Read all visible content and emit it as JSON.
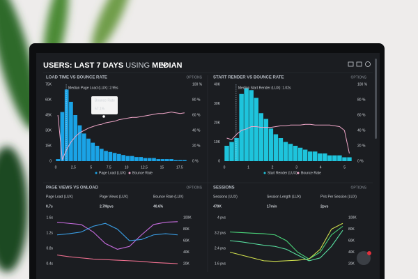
{
  "header": {
    "parts": [
      "USERS:",
      "LAST 7 DAYS",
      "USING",
      "MEDIAN"
    ]
  },
  "panels": [
    {
      "title": "LOAD TIME VS BOUNCE RATE",
      "options": "OPTIONS",
      "left_ticks": [
        {
          "value": 75,
          "label": "75K"
        },
        {
          "value": 60,
          "label": "60K"
        },
        {
          "value": 45,
          "label": "45K"
        },
        {
          "value": 30,
          "label": "30K"
        },
        {
          "value": 15,
          "label": "15K"
        },
        0
      ],
      "right_ticks": [
        {
          "value": 100,
          "label": "100 %"
        },
        {
          "value": 80,
          "label": "80 %"
        },
        {
          "value": 60,
          "label": "60 %"
        },
        {
          "value": 40,
          "label": "40 %"
        },
        {
          "value": 20,
          "label": "20 %"
        },
        {
          "value": 0,
          "label": "0 %"
        }
      ],
      "x_ticks": [
        0,
        2.5,
        5,
        7.5,
        10,
        12.5,
        15,
        17.5
      ],
      "xlim": [
        0,
        18.5
      ],
      "bars": [
        2,
        48,
        70,
        58,
        45,
        35,
        27,
        22,
        18,
        15,
        12,
        10,
        9,
        8,
        7,
        6,
        5,
        5,
        4,
        4,
        3,
        3,
        3,
        2,
        2,
        2,
        2,
        1,
        1,
        1
      ],
      "line": [
        60,
        2,
        15,
        25,
        32,
        37,
        40,
        43,
        45,
        47,
        48,
        50,
        51,
        52,
        54,
        55,
        56,
        57,
        57,
        58,
        59,
        60,
        61,
        62,
        62,
        63,
        64,
        63,
        62,
        63
      ],
      "bar_color": "#1aa3e6",
      "line_color": "#f1a7c9",
      "annotation": "Median Page Load (LUX): 2.95s",
      "tooltip": {
        "label": "Bounce Rate",
        "value": "57.1%"
      },
      "legend": [
        {
          "name": "Page Load (LUX)",
          "color": "#1aa3e6"
        },
        {
          "name": "Bounce Rate",
          "color": "#f1a7c9"
        }
      ]
    },
    {
      "title": "START RENDER VS BOUNCE RATE",
      "options": "OPTIONS",
      "left_ticks": [
        {
          "value": 40,
          "label": "40K"
        },
        {
          "value": 30,
          "label": "30K"
        },
        {
          "value": 20,
          "label": "20K"
        },
        {
          "value": 10,
          "label": "10K"
        },
        0
      ],
      "right_ticks": [
        {
          "value": 100,
          "label": "100 %"
        },
        {
          "value": 80,
          "label": "80 %"
        },
        {
          "value": 60,
          "label": "60 %"
        },
        {
          "value": 40,
          "label": "40 %"
        },
        {
          "value": 20,
          "label": "20 %"
        },
        {
          "value": 0,
          "label": "0 %"
        }
      ],
      "x_ticks": [
        0,
        1,
        2,
        3,
        4,
        5
      ],
      "xlim": [
        0,
        5.3
      ],
      "bars": [
        8,
        10,
        12,
        35,
        38,
        37,
        33,
        25,
        22,
        17,
        14,
        12,
        10,
        9,
        8,
        7,
        6,
        5,
        5,
        4,
        4,
        3,
        3,
        3,
        2,
        2
      ],
      "line": [
        30,
        28,
        35,
        40,
        42,
        45,
        45,
        44,
        44,
        44,
        45,
        46,
        46,
        47,
        47,
        47,
        48,
        48,
        47,
        47,
        47,
        47,
        46,
        45,
        40,
        10
      ],
      "bar_color": "#1ec4dc",
      "line_color": "#f1a7c9",
      "annotation": "Median Start Render (LUX): 1.02s",
      "legend": [
        {
          "name": "Start Render (LUX)",
          "color": "#1ec4dc"
        },
        {
          "name": "Bounce Rate",
          "color": "#f1a7c9"
        }
      ]
    },
    {
      "title": "PAGE VIEWS VS ONLOAD",
      "options": "OPTIONS",
      "metrics": [
        {
          "label": "Page Load (LUX)",
          "value": "0.7s",
          "color": "#3aa0e8"
        },
        {
          "label": "Page Views (LUX)",
          "value": "2.7Mpvs",
          "color": "#c86ce0"
        },
        {
          "label": "Bounce Rate (LUX)",
          "value": "40.6%",
          "color": "#f07090"
        }
      ],
      "left_ticks": [
        {
          "value": 1.6,
          "label": "1.6s"
        },
        {
          "value": 1.2,
          "label": "1.2s"
        },
        {
          "value": 0.8,
          "label": "0.8s"
        },
        {
          "value": 0.4,
          "label": "0.4s"
        }
      ],
      "right_ticks": [
        {
          "value": 100,
          "label": "100K"
        },
        {
          "value": 80,
          "label": "80K"
        },
        {
          "value": 60,
          "label": "60K"
        },
        {
          "value": 40,
          "label": "40K"
        },
        {
          "value": 20,
          "label": "20K"
        }
      ],
      "lines": [
        {
          "color": "#c86ce0",
          "values": [
            92,
            90,
            88,
            75,
            55,
            45,
            50,
            70,
            88,
            92,
            93
          ]
        },
        {
          "color": "#3aa0e8",
          "values": [
            70,
            72,
            75,
            85,
            90,
            80,
            60,
            62,
            70,
            72,
            70
          ]
        },
        {
          "color": "#f07090",
          "values": [
            35,
            32,
            30,
            28,
            27,
            26,
            25,
            24,
            22,
            21,
            20
          ]
        }
      ]
    },
    {
      "title": "SESSIONS",
      "options": "OPTIONS",
      "metrics": [
        {
          "label": "Sessions (LUX)",
          "value": "479K",
          "color": "#4ad67a"
        },
        {
          "label": "Session Length (LUX)",
          "value": "17min",
          "color": "#d2e24e"
        },
        {
          "label": "PVs Per Session (LUX)",
          "value": "2pvs",
          "color": "#58e0a0"
        }
      ],
      "left_ticks": [
        {
          "value": 4,
          "label": "4 pvs"
        },
        {
          "value": 3.2,
          "label": "3.2 pvs"
        },
        {
          "value": 2.4,
          "label": "2.4 pvs"
        },
        {
          "value": 1.6,
          "label": "1.6 pvs"
        }
      ],
      "right_ticks": [
        {
          "value": 100,
          "label": "100K"
        },
        {
          "value": 80,
          "label": "80K"
        },
        {
          "value": 60,
          "label": "60K"
        },
        {
          "value": 40,
          "label": "40K"
        },
        {
          "value": 20,
          "label": "20K"
        }
      ],
      "lines": [
        {
          "color": "#4ad67a",
          "values": [
            75,
            74,
            73,
            72,
            70,
            60,
            40,
            28,
            40,
            70,
            85
          ]
        },
        {
          "color": "#d2e24e",
          "values": [
            40,
            35,
            30,
            25,
            24,
            25,
            26,
            28,
            45,
            80,
            90
          ]
        },
        {
          "color": "#58e0a0",
          "values": [
            60,
            58,
            55,
            52,
            50,
            45,
            35,
            25,
            30,
            50,
            78
          ]
        }
      ]
    }
  ]
}
